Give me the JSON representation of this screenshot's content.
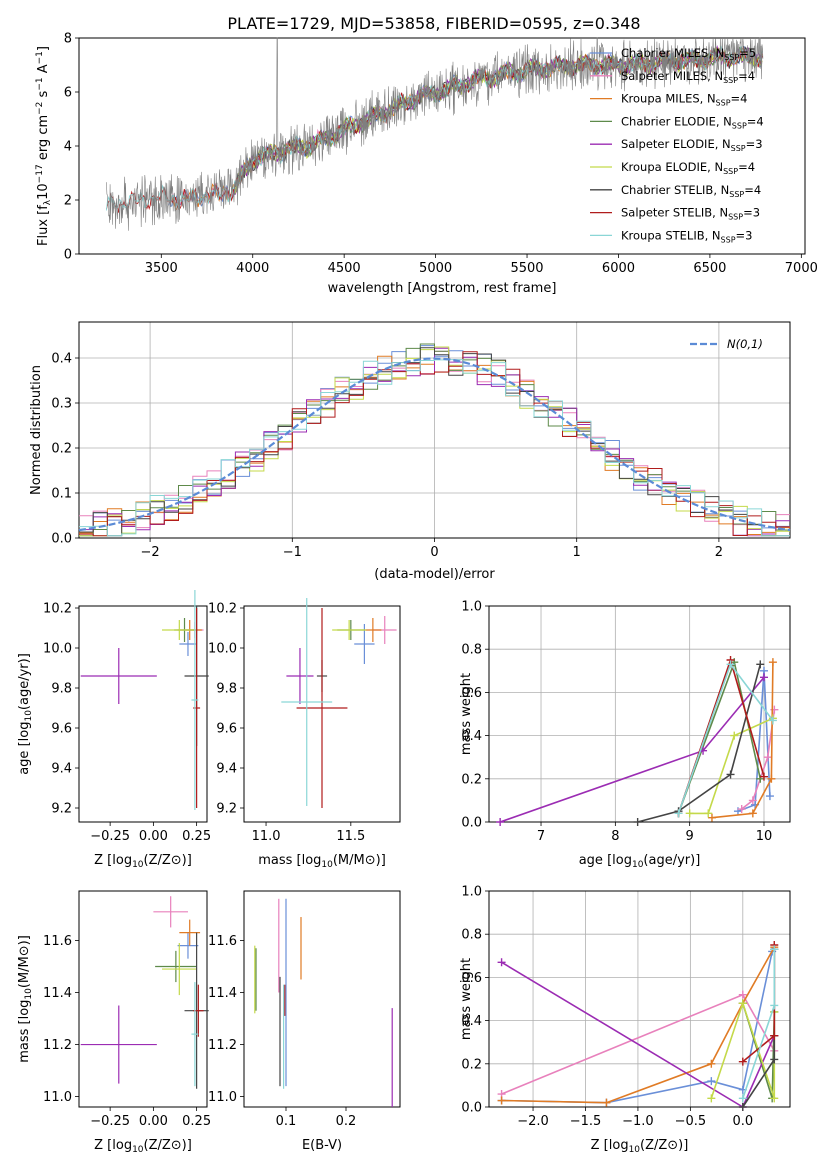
{
  "figure_title": "PLATE=1729, MJD=53858, FIBERID=0595, z=0.348",
  "colors": {
    "Chabrier MILES": "#6a8fd8",
    "Salpeter MILES": "#e881bc",
    "Kroupa MILES": "#e07b25",
    "Chabrier ELODIE": "#5e8a4a",
    "Salpeter ELODIE": "#9b2cb3",
    "Kroupa ELODIE": "#c4d94a",
    "Chabrier STELIB": "#444444",
    "Salpeter STELIB": "#b01c1c",
    "Kroupa STELIB": "#8ad6d6",
    "normal": "#5b8bd6"
  },
  "chart_data": [
    {
      "type": "line",
      "title": "PLATE=1729, MJD=53858, FIBERID=0595, z=0.348",
      "xlabel": "wavelength [Angstrom, rest frame]",
      "ylabel": "Flux [f$_{\\lambda}$10$^{-17}$ erg cm$^{-2}$ s$^{-1}$ A$^{-1}$]",
      "ylabel_parts": {
        "a": "Flux [f",
        "b": "λ",
        "c": "10",
        "d": "−17",
        "e": " erg cm",
        "f": "−2",
        "g": " s",
        "h": "−1",
        "i": " A",
        "j": "−1",
        "k": "]"
      },
      "xlim": [
        3050,
        7020
      ],
      "ylim": [
        0,
        8
      ],
      "xticks": [
        "3500",
        "4000",
        "4500",
        "5000",
        "5500",
        "6000",
        "6500",
        "7000"
      ],
      "yticks": [
        "0",
        "2",
        "4",
        "6",
        "8"
      ],
      "legend_position": "right",
      "legend": [
        {
          "name": "Chabrier MILES",
          "n": "5"
        },
        {
          "name": "Salpeter MILES",
          "n": "4"
        },
        {
          "name": "Kroupa MILES",
          "n": "4"
        },
        {
          "name": "Chabrier ELODIE",
          "n": "4"
        },
        {
          "name": "Salpeter ELODIE",
          "n": "3"
        },
        {
          "name": "Kroupa ELODIE",
          "n": "4"
        },
        {
          "name": "Chabrier STELIB",
          "n": "4"
        },
        {
          "name": "Salpeter STELIB",
          "n": "3"
        },
        {
          "name": "Kroupa STELIB",
          "n": "3"
        }
      ],
      "legend_nssp_label": "N",
      "legend_nssp_sub": "SSP",
      "continuum": {
        "x": [
          3200,
          3300,
          3400,
          3500,
          3600,
          3700,
          3800,
          3900,
          4000,
          4100,
          4200,
          4300,
          4400,
          4500,
          4600,
          4700,
          4800,
          4900,
          5000,
          5200,
          5400,
          5600,
          5800,
          6000,
          6200,
          6400,
          6600,
          6800
        ],
        "y": [
          1.8,
          1.9,
          2.0,
          2.1,
          2.0,
          2.1,
          2.2,
          2.4,
          3.5,
          3.7,
          3.9,
          4.0,
          4.3,
          4.6,
          4.9,
          5.2,
          5.5,
          5.8,
          6.0,
          6.4,
          6.7,
          6.9,
          7.0,
          7.0,
          7.1,
          7.2,
          7.3,
          7.3
        ]
      }
    },
    {
      "type": "line",
      "xlabel": "(data-model)/error",
      "ylabel": "Normed distribution",
      "xlim": [
        -2.5,
        2.5
      ],
      "ylim": [
        0,
        0.48
      ],
      "xticks": [
        "−2",
        "−1",
        "0",
        "1",
        "2"
      ],
      "yticks": [
        "0.0",
        "0.1",
        "0.2",
        "0.3",
        "0.4"
      ],
      "grid": true,
      "legend_position": "top-right",
      "normal_legend_label": "N(0,1)",
      "bin_width": 0.1
    },
    {
      "type": "scatter",
      "xlabel": "Z [log10(Z/Z⊙)]",
      "ylabel": "age  [log10(age/yr)]",
      "xlim": [
        -0.43,
        0.31
      ],
      "ylim": [
        9.13,
        10.21
      ],
      "xticks": [
        "−0.25",
        "0.00",
        "0.25"
      ],
      "yticks": [
        "9.2",
        "9.4",
        "9.6",
        "9.8",
        "10.0",
        "10.2"
      ],
      "points": [
        {
          "series": "Chabrier MILES",
          "x": 0.2,
          "y": 10.02,
          "xerr": 0.05,
          "yerr": 0.06
        },
        {
          "series": "Salpeter MILES",
          "x": 0.24,
          "y": 10.09,
          "xerr": 0.05,
          "yerr": 0.04
        },
        {
          "series": "Kroupa MILES",
          "x": 0.21,
          "y": 10.09,
          "xerr": 0.07,
          "yerr": 0.05
        },
        {
          "series": "Chabrier ELODIE",
          "x": 0.18,
          "y": 10.09,
          "xerr": 0.06,
          "yerr": 0.06
        },
        {
          "series": "Salpeter ELODIE",
          "x": -0.2,
          "y": 9.86,
          "xerr": 0.22,
          "yerr": 0.14
        },
        {
          "series": "Kroupa ELODIE",
          "x": 0.15,
          "y": 10.09,
          "xerr": 0.1,
          "yerr": 0.05
        },
        {
          "series": "Chabrier STELIB",
          "x": 0.25,
          "y": 9.86,
          "xerr": 0.07,
          "yerr": 0.35
        },
        {
          "series": "Salpeter STELIB",
          "x": 0.25,
          "y": 9.7,
          "xerr": 0.02,
          "yerr": 0.5
        },
        {
          "series": "Kroupa STELIB",
          "x": 0.24,
          "y": 9.74,
          "xerr": 0.02,
          "yerr": 0.55
        }
      ]
    },
    {
      "type": "scatter",
      "xlabel": "mass [log10(M/M⊙)]",
      "xlim": [
        10.87,
        11.79
      ],
      "ylim": [
        9.13,
        10.21
      ],
      "xticks": [
        "11.0",
        "11.5"
      ],
      "yticks": [
        "9.2",
        "9.4",
        "9.6",
        "9.8",
        "10.0",
        "10.2"
      ],
      "points": [
        {
          "series": "Chabrier MILES",
          "x": 11.58,
          "y": 10.02,
          "xerr": 0.06,
          "yerr": 0.1
        },
        {
          "series": "Salpeter MILES",
          "x": 11.7,
          "y": 10.09,
          "xerr": 0.07,
          "yerr": 0.07
        },
        {
          "series": "Kroupa MILES",
          "x": 11.63,
          "y": 10.09,
          "xerr": 0.05,
          "yerr": 0.06
        },
        {
          "series": "Chabrier ELODIE",
          "x": 11.5,
          "y": 10.09,
          "xerr": 0.08,
          "yerr": 0.05
        },
        {
          "series": "Salpeter ELODIE",
          "x": 11.2,
          "y": 9.86,
          "xerr": 0.08,
          "yerr": 0.14
        },
        {
          "series": "Kroupa ELODIE",
          "x": 11.49,
          "y": 10.09,
          "xerr": 0.1,
          "yerr": 0.05
        },
        {
          "series": "Chabrier STELIB",
          "x": 11.33,
          "y": 9.86,
          "xerr": 0.03,
          "yerr": 0.08
        },
        {
          "series": "Salpeter STELIB",
          "x": 11.33,
          "y": 9.7,
          "xerr": 0.15,
          "yerr": 0.5
        },
        {
          "series": "Kroupa STELIB",
          "x": 11.24,
          "y": 9.73,
          "xerr": 0.15,
          "yerr": 0.52
        }
      ]
    },
    {
      "type": "line",
      "xlabel": "age  [log10(age/yr)]",
      "ylabel": "mass weight",
      "xlim": [
        6.3,
        10.35
      ],
      "ylim": [
        0,
        1.0
      ],
      "xticks": [
        "7",
        "8",
        "9",
        "10"
      ],
      "yticks": [
        "0.0",
        "0.2",
        "0.4",
        "0.6",
        "0.8",
        "1.0"
      ],
      "grid": true,
      "series": [
        {
          "name": "Chabrier MILES",
          "x": [
            9.65,
            9.88,
            10.0,
            10.08
          ],
          "y": [
            0.05,
            0.08,
            0.7,
            0.12
          ]
        },
        {
          "name": "Salpeter MILES",
          "x": [
            9.7,
            9.85,
            10.05,
            10.14
          ],
          "y": [
            0.06,
            0.1,
            0.3,
            0.52
          ]
        },
        {
          "name": "Kroupa MILES",
          "x": [
            9.3,
            9.85,
            10.1,
            10.12
          ],
          "y": [
            0.02,
            0.04,
            0.2,
            0.74
          ]
        },
        {
          "name": "Chabrier ELODIE",
          "x": [
            8.85,
            9.6,
            9.95
          ],
          "y": [
            0.04,
            0.74,
            0.2
          ]
        },
        {
          "name": "Salpeter ELODIE",
          "x": [
            6.45,
            9.18,
            10.0
          ],
          "y": [
            0.0,
            0.33,
            0.67
          ]
        },
        {
          "name": "Kroupa ELODIE",
          "x": [
            9.0,
            9.25,
            9.6,
            10.12
          ],
          "y": [
            0.04,
            0.04,
            0.4,
            0.48
          ]
        },
        {
          "name": "Chabrier STELIB",
          "x": [
            8.3,
            8.85,
            9.55,
            9.95
          ],
          "y": [
            0.0,
            0.05,
            0.22,
            0.73
          ]
        },
        {
          "name": "Salpeter STELIB",
          "x": [
            8.85,
            9.55,
            10.0
          ],
          "y": [
            0.04,
            0.75,
            0.21
          ]
        },
        {
          "name": "Kroupa STELIB",
          "x": [
            8.85,
            9.55,
            10.12
          ],
          "y": [
            0.04,
            0.73,
            0.47
          ]
        }
      ]
    },
    {
      "type": "scatter",
      "xlabel": "Z [log10(Z/Z⊙)]",
      "ylabel": "mass [log10(M/M⊙)]",
      "xlim": [
        -0.43,
        0.31
      ],
      "ylim": [
        10.96,
        11.79
      ],
      "xticks": [
        "−0.25",
        "0.00",
        "0.25"
      ],
      "yticks": [
        "11.0",
        "11.2",
        "11.4",
        "11.6"
      ],
      "points": [
        {
          "series": "Chabrier MILES",
          "x": 0.2,
          "y": 11.58,
          "xerr": 0.06,
          "yerr": 0.05
        },
        {
          "series": "Salpeter MILES",
          "x": 0.1,
          "y": 11.71,
          "xerr": 0.1,
          "yerr": 0.06
        },
        {
          "series": "Kroupa MILES",
          "x": 0.21,
          "y": 11.63,
          "xerr": 0.06,
          "yerr": 0.05
        },
        {
          "series": "Chabrier ELODIE",
          "x": 0.13,
          "y": 11.5,
          "xerr": 0.12,
          "yerr": 0.06
        },
        {
          "series": "Salpeter ELODIE",
          "x": -0.2,
          "y": 11.2,
          "xerr": 0.22,
          "yerr": 0.15
        },
        {
          "series": "Kroupa ELODIE",
          "x": 0.15,
          "y": 11.49,
          "xerr": 0.1,
          "yerr": 0.1
        },
        {
          "series": "Chabrier STELIB",
          "x": 0.25,
          "y": 11.33,
          "xerr": 0.07,
          "yerr": 0.3
        },
        {
          "series": "Salpeter STELIB",
          "x": 0.26,
          "y": 11.33,
          "xerr": 0.03,
          "yerr": 0.1
        },
        {
          "series": "Kroupa STELIB",
          "x": 0.24,
          "y": 11.24,
          "xerr": 0.02,
          "yerr": 0.2
        }
      ]
    },
    {
      "type": "scatter",
      "xlabel": "E(B-V)",
      "xlim": [
        0.03,
        0.29
      ],
      "ylim": [
        10.96,
        11.79
      ],
      "xticks": [
        "0.1",
        "0.2"
      ],
      "yticks": [
        "11.0",
        "11.2",
        "11.4",
        "11.6"
      ],
      "points": [
        {
          "series": "Chabrier MILES",
          "x": 0.1,
          "y": 11.4,
          "yerr": 0.36
        },
        {
          "series": "Salpeter MILES",
          "x": 0.088,
          "y": 11.58,
          "yerr": 0.18
        },
        {
          "series": "Kroupa MILES",
          "x": 0.125,
          "y": 11.57,
          "yerr": 0.12
        },
        {
          "series": "Chabrier ELODIE",
          "x": 0.05,
          "y": 11.45,
          "yerr": 0.12
        },
        {
          "series": "Salpeter ELODIE",
          "x": 0.277,
          "y": 11.15,
          "yerr": 0.19
        },
        {
          "series": "Kroupa ELODIE",
          "x": 0.048,
          "y": 11.45,
          "yerr": 0.13
        },
        {
          "series": "Chabrier STELIB",
          "x": 0.09,
          "y": 11.25,
          "yerr": 0.21
        },
        {
          "series": "Salpeter STELIB",
          "x": 0.098,
          "y": 11.37,
          "yerr": 0.06
        },
        {
          "series": "Kroupa STELIB",
          "x": 0.096,
          "y": 11.23,
          "yerr": 0.2
        }
      ]
    },
    {
      "type": "line",
      "xlabel": "Z [log10(Z/Z⊙)]",
      "ylabel": "mass weight",
      "xlim": [
        -2.42,
        0.45
      ],
      "ylim": [
        0,
        1.0
      ],
      "xticks": [
        "−2.0",
        "−1.5",
        "−1.0",
        "−0.5",
        "0.0"
      ],
      "yticks": [
        "0.0",
        "0.2",
        "0.4",
        "0.6",
        "0.8",
        "1.0"
      ],
      "grid": true,
      "series": [
        {
          "name": "Chabrier MILES",
          "x": [
            -2.3,
            -1.3,
            -0.3,
            0.0,
            0.28
          ],
          "y": [
            0.03,
            0.02,
            0.12,
            0.08,
            0.72
          ]
        },
        {
          "name": "Salpeter MILES",
          "x": [
            -2.3,
            0.0,
            0.3
          ],
          "y": [
            0.06,
            0.52,
            0.26
          ]
        },
        {
          "name": "Kroupa MILES",
          "x": [
            -2.3,
            -1.3,
            -0.3,
            0.0,
            0.3
          ],
          "y": [
            0.03,
            0.02,
            0.2,
            0.48,
            0.74
          ]
        },
        {
          "name": "Chabrier ELODIE",
          "x": [
            0.0,
            0.28,
            0.3
          ],
          "y": [
            0.48,
            0.04,
            0.44
          ]
        },
        {
          "name": "Salpeter ELODIE",
          "x": [
            -2.3,
            0.0,
            0.3
          ],
          "y": [
            0.67,
            0.0,
            0.33
          ]
        },
        {
          "name": "Kroupa ELODIE",
          "x": [
            -0.3,
            0.0,
            0.3,
            0.3
          ],
          "y": [
            0.04,
            0.48,
            0.04,
            0.44
          ]
        },
        {
          "name": "Chabrier STELIB",
          "x": [
            0.0,
            0.3,
            0.3,
            0.3
          ],
          "y": [
            0.0,
            0.22,
            0.33,
            0.73
          ]
        },
        {
          "name": "Salpeter STELIB",
          "x": [
            0.0,
            0.3,
            0.3
          ],
          "y": [
            0.21,
            0.33,
            0.75
          ]
        },
        {
          "name": "Kroupa STELIB",
          "x": [
            0.0,
            0.3,
            0.3
          ],
          "y": [
            0.04,
            0.47,
            0.73
          ]
        }
      ]
    }
  ]
}
